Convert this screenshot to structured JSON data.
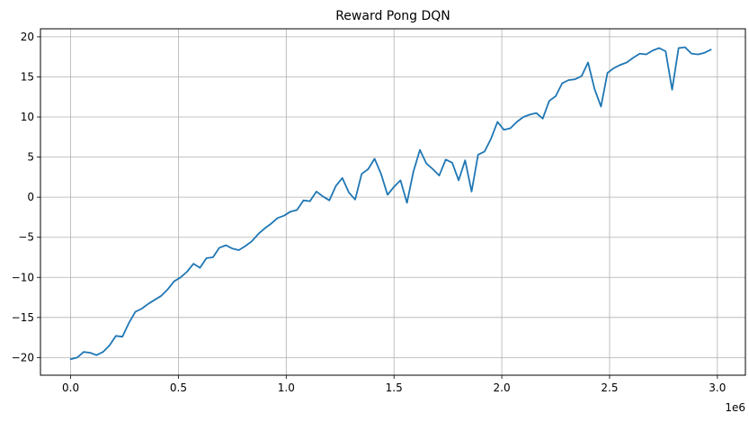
{
  "chart_data": {
    "type": "line",
    "title": "Reward Pong DQN",
    "xlabel": "",
    "ylabel": "",
    "x_offset_label": "1e6",
    "xlim": [
      -0.14,
      3.13
    ],
    "ylim": [
      -22.2,
      21.0
    ],
    "x_ticks": [
      0.0,
      0.5,
      1.0,
      1.5,
      2.0,
      2.5,
      3.0
    ],
    "x_tick_labels": [
      "0.0",
      "0.5",
      "1.0",
      "1.5",
      "2.0",
      "2.5",
      "3.0"
    ],
    "y_ticks": [
      -20,
      -15,
      -10,
      -5,
      0,
      5,
      10,
      15,
      20
    ],
    "y_tick_labels": [
      "−20",
      "−15",
      "−10",
      "−5",
      "0",
      "5",
      "10",
      "15",
      "20"
    ],
    "grid": true,
    "line_color": "#1f77b4",
    "series": [
      {
        "name": "",
        "x": [
          0.0,
          0.03,
          0.06,
          0.09,
          0.12,
          0.15,
          0.18,
          0.21,
          0.24,
          0.27,
          0.3,
          0.33,
          0.36,
          0.39,
          0.42,
          0.45,
          0.48,
          0.51,
          0.54,
          0.57,
          0.6,
          0.63,
          0.66,
          0.69,
          0.72,
          0.75,
          0.78,
          0.81,
          0.84,
          0.87,
          0.9,
          0.93,
          0.96,
          0.99,
          1.02,
          1.05,
          1.08,
          1.11,
          1.14,
          1.17,
          1.2,
          1.23,
          1.26,
          1.29,
          1.32,
          1.35,
          1.38,
          1.41,
          1.44,
          1.47,
          1.5,
          1.53,
          1.56,
          1.59,
          1.62,
          1.65,
          1.68,
          1.71,
          1.74,
          1.77,
          1.8,
          1.83,
          1.86,
          1.89,
          1.92,
          1.95,
          1.98,
          2.01,
          2.04,
          2.07,
          2.1,
          2.13,
          2.16,
          2.19,
          2.22,
          2.25,
          2.28,
          2.31,
          2.34,
          2.37,
          2.4,
          2.43,
          2.46,
          2.49,
          2.52,
          2.55,
          2.58,
          2.61,
          2.64,
          2.67,
          2.7,
          2.73,
          2.76,
          2.79,
          2.82,
          2.85,
          2.88,
          2.91,
          2.94,
          2.97
        ],
        "values": [
          -20.2,
          -20.0,
          -19.3,
          -19.4,
          -19.7,
          -19.3,
          -18.5,
          -17.3,
          -17.4,
          -15.7,
          -14.3,
          -13.9,
          -13.3,
          -12.8,
          -12.3,
          -11.5,
          -10.5,
          -10.0,
          -9.3,
          -8.3,
          -8.8,
          -7.6,
          -7.5,
          -6.3,
          -6.0,
          -6.4,
          -6.6,
          -6.1,
          -5.5,
          -4.6,
          -3.9,
          -3.3,
          -2.6,
          -2.3,
          -1.8,
          -1.6,
          -0.4,
          -0.5,
          0.7,
          0.1,
          -0.4,
          1.4,
          2.4,
          0.6,
          -0.3,
          2.9,
          3.5,
          4.8,
          2.9,
          0.3,
          1.3,
          2.1,
          -0.7,
          3.2,
          5.9,
          4.2,
          3.5,
          2.7,
          4.7,
          4.3,
          2.1,
          4.6,
          0.7,
          5.3,
          5.7,
          7.3,
          9.4,
          8.4,
          8.6,
          9.4,
          10.0,
          10.3,
          10.5,
          9.8,
          12.0,
          12.6,
          14.2,
          14.6,
          14.7,
          15.1,
          16.8,
          13.5,
          11.3,
          15.5,
          16.1,
          16.5,
          16.8,
          17.4,
          17.9,
          17.8,
          18.3,
          18.6,
          18.2,
          13.4,
          18.6,
          18.7,
          17.9,
          17.8,
          18.0,
          18.4
        ]
      }
    ]
  }
}
